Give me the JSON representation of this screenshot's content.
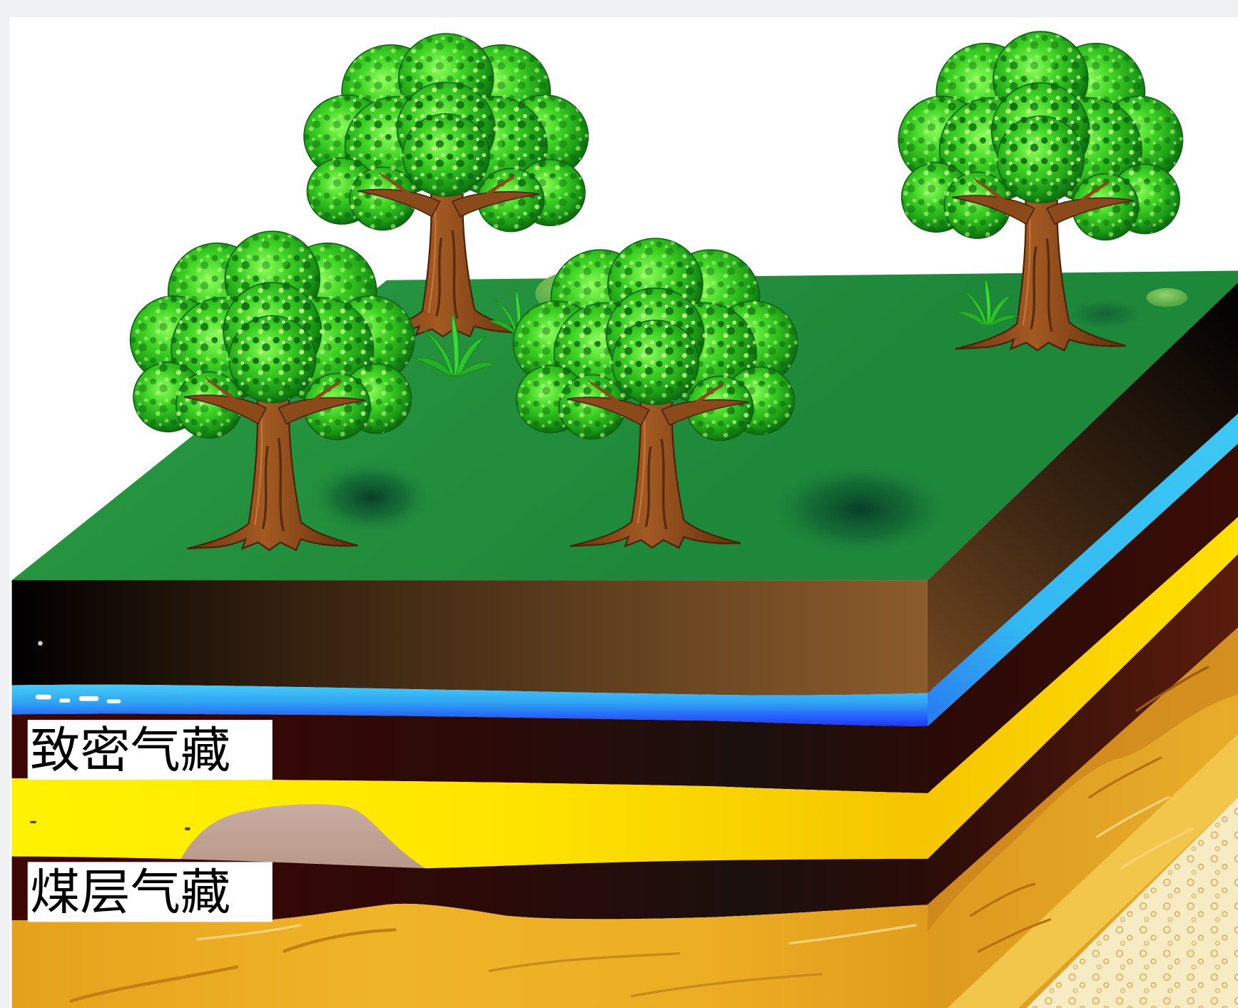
{
  "labels": {
    "tight_gas_reservoir": "致密气藏",
    "coalbed_gas_reservoir": "煤层气藏"
  }
}
